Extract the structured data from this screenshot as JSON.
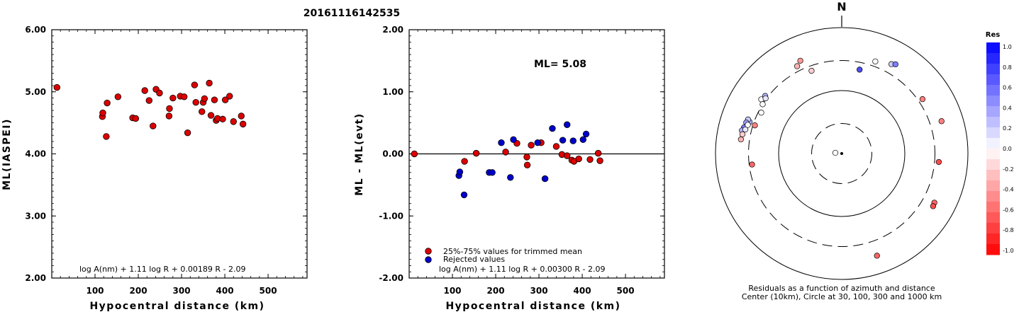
{
  "header": {
    "event_id": "20161116142535"
  },
  "chart_data": [
    {
      "type": "scatter",
      "title": "",
      "xlabel": "Hypocentral distance (km)",
      "ylabel": "ML(IASPEI)",
      "xlim": [
        0,
        590
      ],
      "ylim": [
        2.0,
        6.0
      ],
      "x_ticks": [
        "100",
        "200",
        "300",
        "400",
        "500"
      ],
      "y_ticks": [
        "2.00",
        "3.00",
        "4.00",
        "5.00",
        "6.00"
      ],
      "formula": "log A(nm) + 1.11 log R + 0.00189 R - 2.09",
      "marker_color": "#dd0000",
      "points": [
        {
          "x": 12,
          "y": 5.07
        },
        {
          "x": 117,
          "y": 4.6
        },
        {
          "x": 118,
          "y": 4.66
        },
        {
          "x": 126,
          "y": 4.28
        },
        {
          "x": 128,
          "y": 4.82
        },
        {
          "x": 153,
          "y": 4.92
        },
        {
          "x": 187,
          "y": 4.58
        },
        {
          "x": 194,
          "y": 4.57
        },
        {
          "x": 215,
          "y": 5.02
        },
        {
          "x": 225,
          "y": 4.86
        },
        {
          "x": 234,
          "y": 4.45
        },
        {
          "x": 241,
          "y": 5.04
        },
        {
          "x": 249,
          "y": 4.98
        },
        {
          "x": 271,
          "y": 4.61
        },
        {
          "x": 272,
          "y": 4.73
        },
        {
          "x": 280,
          "y": 4.9
        },
        {
          "x": 297,
          "y": 4.93
        },
        {
          "x": 306,
          "y": 4.92
        },
        {
          "x": 314,
          "y": 4.34
        },
        {
          "x": 330,
          "y": 5.11
        },
        {
          "x": 333,
          "y": 4.83
        },
        {
          "x": 347,
          "y": 4.68
        },
        {
          "x": 350,
          "y": 4.83
        },
        {
          "x": 353,
          "y": 4.89
        },
        {
          "x": 364,
          "y": 5.14
        },
        {
          "x": 368,
          "y": 4.62
        },
        {
          "x": 376,
          "y": 4.87
        },
        {
          "x": 380,
          "y": 4.54
        },
        {
          "x": 383,
          "y": 4.57
        },
        {
          "x": 395,
          "y": 4.56
        },
        {
          "x": 401,
          "y": 4.87
        },
        {
          "x": 411,
          "y": 4.93
        },
        {
          "x": 420,
          "y": 4.52
        },
        {
          "x": 438,
          "y": 4.61
        },
        {
          "x": 442,
          "y": 4.48
        }
      ]
    },
    {
      "type": "scatter",
      "title": "",
      "xlabel": "Hypocentral distance (km)",
      "ylabel": "ML - ML(evt)",
      "xlim": [
        0,
        590
      ],
      "ylim": [
        -2.0,
        2.0
      ],
      "x_ticks": [
        "100",
        "200",
        "300",
        "400",
        "500"
      ],
      "y_ticks": [
        "-2.00",
        "-1.00",
        "0.00",
        "1.00",
        "2.00"
      ],
      "annotation": "ML= 5.08",
      "formula": "log A(nm) + 1.11 log R + 0.00300 R - 2.09",
      "legend": [
        {
          "label": "25%-75% values for trimmed mean",
          "color": "#dd0000"
        },
        {
          "label": "Rejected values",
          "color": "#0000cc"
        }
      ],
      "legend_position": "bottom-left",
      "zero_line": true,
      "series": [
        {
          "name": "25%-75% values for trimmed mean",
          "color": "#dd0000",
          "points": [
            {
              "x": 12,
              "y": 0.0
            },
            {
              "x": 128,
              "y": -0.12
            },
            {
              "x": 155,
              "y": 0.01
            },
            {
              "x": 223,
              "y": 0.03
            },
            {
              "x": 249,
              "y": 0.17
            },
            {
              "x": 272,
              "y": -0.05
            },
            {
              "x": 273,
              "y": -0.18
            },
            {
              "x": 282,
              "y": 0.14
            },
            {
              "x": 305,
              "y": 0.18
            },
            {
              "x": 340,
              "y": 0.12
            },
            {
              "x": 353,
              "y": -0.01
            },
            {
              "x": 365,
              "y": -0.03
            },
            {
              "x": 376,
              "y": -0.1
            },
            {
              "x": 381,
              "y": -0.12
            },
            {
              "x": 392,
              "y": -0.08
            },
            {
              "x": 418,
              "y": -0.09
            },
            {
              "x": 437,
              "y": 0.01
            },
            {
              "x": 441,
              "y": -0.11
            }
          ]
        },
        {
          "name": "Rejected values",
          "color": "#0000cc",
          "points": [
            {
              "x": 115,
              "y": -0.35
            },
            {
              "x": 117,
              "y": -0.29
            },
            {
              "x": 127,
              "y": -0.66
            },
            {
              "x": 185,
              "y": -0.3
            },
            {
              "x": 192,
              "y": -0.3
            },
            {
              "x": 213,
              "y": 0.18
            },
            {
              "x": 234,
              "y": -0.38
            },
            {
              "x": 241,
              "y": 0.23
            },
            {
              "x": 297,
              "y": 0.18
            },
            {
              "x": 314,
              "y": -0.4
            },
            {
              "x": 331,
              "y": 0.41
            },
            {
              "x": 355,
              "y": 0.22
            },
            {
              "x": 365,
              "y": 0.47
            },
            {
              "x": 379,
              "y": 0.21
            },
            {
              "x": 402,
              "y": 0.23
            },
            {
              "x": 409,
              "y": 0.32
            }
          ]
        }
      ]
    },
    {
      "type": "scatter",
      "subtype": "polar-residuals",
      "north_label": "N",
      "caption_line1": "Residuals as a function of azimuth and distance",
      "caption_line2": "Center (10km), Circle at 30, 100, 300 and 1000 km",
      "circles_km": [
        10,
        30,
        100,
        300,
        1000
      ],
      "colorbar_title": "Res",
      "colorbar_ticks": [
        "1.0",
        "0.8",
        "0.6",
        "0.4",
        "0.2",
        "0.0",
        "-0.2",
        "-0.4",
        "-0.6",
        "-0.8",
        "-1.0"
      ],
      "colorbar_range": [
        -1.0,
        1.0
      ],
      "colors": {
        "positive": "#0000ff",
        "negative": "#ff0000",
        "zero": "#ffffff"
      },
      "points": [
        {
          "az": 288,
          "dist_km": 8,
          "res": 0.0
        },
        {
          "az": 12,
          "dist_km": 230,
          "res": 0.7
        },
        {
          "az": 20,
          "dist_km": 360,
          "res": 0.0
        },
        {
          "az": 29,
          "dist_km": 420,
          "res": 0.2
        },
        {
          "az": 31,
          "dist_km": 450,
          "res": 0.5
        },
        {
          "az": 340,
          "dist_km": 250,
          "res": -0.2
        },
        {
          "az": 333,
          "dist_km": 360,
          "res": -0.3
        },
        {
          "az": 336,
          "dist_km": 410,
          "res": -0.4
        },
        {
          "az": 307,
          "dist_km": 330,
          "res": 0.3
        },
        {
          "az": 304,
          "dist_km": 345,
          "res": 0.0
        },
        {
          "az": 306,
          "dist_km": 310,
          "res": 0.1
        },
        {
          "az": 302,
          "dist_km": 300,
          "res": 0.0
        },
        {
          "az": 297,
          "dist_km": 270,
          "res": 0.0
        },
        {
          "az": 288,
          "dist_km": 280,
          "res": -0.5
        },
        {
          "az": 289,
          "dist_km": 350,
          "res": 0.3
        },
        {
          "az": 290,
          "dist_km": 380,
          "res": 0.2
        },
        {
          "az": 288,
          "dist_km": 390,
          "res": 0.4
        },
        {
          "az": 285,
          "dist_km": 400,
          "res": 0.5
        },
        {
          "az": 283,
          "dist_km": 420,
          "res": 0.3
        },
        {
          "az": 284,
          "dist_km": 375,
          "res": 0.1
        },
        {
          "az": 287,
          "dist_km": 360,
          "res": 0.0
        },
        {
          "az": 281,
          "dist_km": 400,
          "res": -0.2
        },
        {
          "az": 278,
          "dist_km": 410,
          "res": -0.3
        },
        {
          "az": 263,
          "dist_km": 270,
          "res": -0.6
        },
        {
          "az": 56,
          "dist_km": 350,
          "res": -0.5
        },
        {
          "az": 72,
          "dist_km": 460,
          "res": -0.5
        },
        {
          "az": 95,
          "dist_km": 350,
          "res": -0.7
        },
        {
          "az": 118,
          "dist_km": 460,
          "res": -0.6
        },
        {
          "az": 120,
          "dist_km": 470,
          "res": -0.7
        },
        {
          "az": 161,
          "dist_km": 520,
          "res": -0.6
        }
      ]
    }
  ]
}
